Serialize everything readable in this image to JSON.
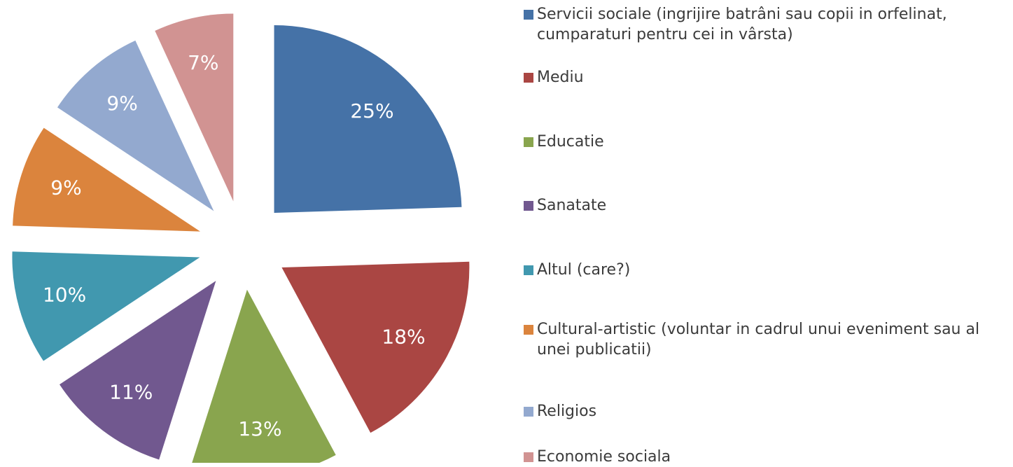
{
  "chart_data": {
    "type": "pie",
    "categories": [
      "Servicii sociale (ingrijire batrâni sau copii in orfelinat, cumparaturi pentru cei in vârsta)",
      "Mediu",
      "Educatie",
      "Sanatate",
      "Altul (care?)",
      "Cultural-artistic (voluntar in cadrul unui eveniment sau al unei publicatii)",
      "Religios",
      "Economie sociala"
    ],
    "values": [
      25,
      18,
      13,
      11,
      10,
      9,
      9,
      7
    ],
    "value_labels": [
      "25%",
      "18%",
      "13%",
      "11%",
      "10%",
      "9%",
      "9%",
      "7%"
    ],
    "colors": [
      "#4572a7",
      "#aa4643",
      "#89a54e",
      "#71588f",
      "#4198af",
      "#db843d",
      "#93a9cf",
      "#d19392"
    ],
    "legend": "right"
  }
}
